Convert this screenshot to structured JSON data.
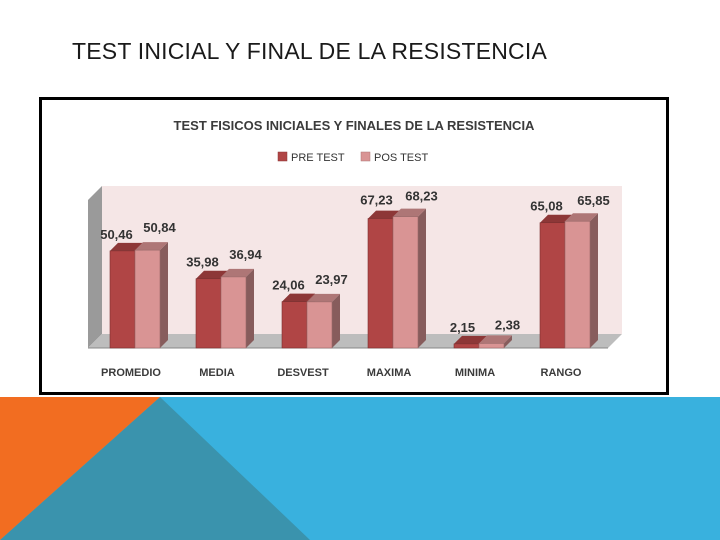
{
  "slide": {
    "title": "TEST INICIAL Y FINAL DE LA RESISTENCIA"
  },
  "colors": {
    "pre_test": "#b04545",
    "pos_test": "#d99494",
    "plot_background": "#f5e6e6",
    "footer_orange": "#f26d21",
    "footer_teal": "#3a93ad",
    "footer_blue": "#39b1de"
  },
  "chart_data": {
    "type": "bar",
    "title": "TEST FISICOS INICIALES Y FINALES DE LA RESISTENCIA",
    "categories": [
      "PROMEDIO",
      "MEDIA",
      "DESVEST",
      "MAXIMA",
      "MINIMA",
      "RANGO"
    ],
    "series": [
      {
        "name": "PRE TEST",
        "values": [
          50.46,
          35.98,
          24.06,
          67.23,
          2.15,
          65.08
        ],
        "labels": [
          "50,46",
          "35,98",
          "24,06",
          "67,23",
          "2,15",
          "65,08"
        ]
      },
      {
        "name": "POS TEST",
        "values": [
          50.84,
          36.94,
          23.97,
          68.23,
          2.38,
          65.85
        ],
        "labels": [
          "50,84",
          "36,94",
          "23,97",
          "68,23",
          "2,38",
          "65,85"
        ]
      }
    ],
    "ylim": [
      0,
      80
    ],
    "legend_position": "top-center",
    "style": "3d-clustered-column"
  }
}
